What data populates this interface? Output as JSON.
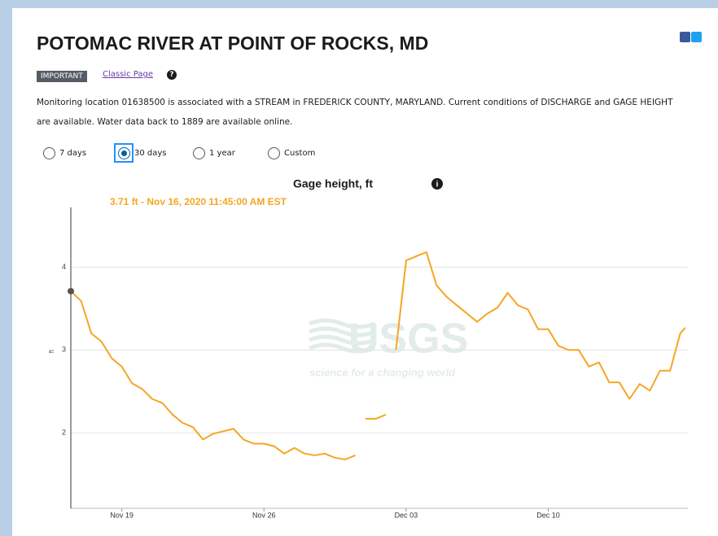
{
  "header": {
    "title": "POTOMAC RIVER AT POINT OF ROCKS, MD",
    "badge": "IMPORTANT",
    "link": "Classic Page"
  },
  "description": "Monitoring location 01638500 is associated with a STREAM in FREDERICK COUNTY, MARYLAND. Current conditions of DISCHARGE and GAGE HEIGHT are available. Water data back to 1889 are available online.",
  "period_options": {
    "options": [
      "7 days",
      "30 days",
      "1 year",
      "Custom"
    ],
    "selected": "30 days"
  },
  "chart_data": {
    "type": "line",
    "title": "Gage height, ft",
    "ylabel": "ft",
    "tooltip": "3.71 ft - Nov 16, 2020 11:45:00 AM EST",
    "watermark": [
      "USGS",
      "science for a changing world"
    ],
    "color": "#f5a623",
    "x": [
      "2020-11-16T11:45",
      "2020-11-17T00:00",
      "2020-11-17T12:00",
      "2020-11-18T00:00",
      "2020-11-18T12:00",
      "2020-11-19T00:00",
      "2020-11-19T12:00",
      "2020-11-20T00:00",
      "2020-11-20T12:00",
      "2020-11-21T00:00",
      "2020-11-21T12:00",
      "2020-11-22T00:00",
      "2020-11-22T12:00",
      "2020-11-23T00:00",
      "2020-11-23T12:00",
      "2020-11-24T00:00",
      "2020-11-24T12:00",
      "2020-11-25T00:00",
      "2020-11-25T12:00",
      "2020-11-26T00:00",
      "2020-11-26T12:00",
      "2020-11-27T00:00",
      "2020-11-27T12:00",
      "2020-11-28T00:00",
      "2020-11-28T12:00",
      "2020-11-29T00:00",
      "2020-11-29T12:00",
      "2020-11-30T00:00",
      "2020-11-30T12:00",
      "2020-11-30T18:00",
      "2020-12-01T00:00",
      "2020-12-01T12:00",
      "2020-12-02T00:00",
      "2020-12-02T06:00",
      "2020-12-02T12:00",
      "2020-12-03T00:00",
      "2020-12-03T12:00",
      "2020-12-04T00:00",
      "2020-12-04T12:00",
      "2020-12-05T00:00",
      "2020-12-05T12:00",
      "2020-12-06T00:00",
      "2020-12-06T12:00",
      "2020-12-07T00:00",
      "2020-12-07T12:00",
      "2020-12-08T00:00",
      "2020-12-08T12:00",
      "2020-12-09T00:00",
      "2020-12-09T12:00",
      "2020-12-10T00:00",
      "2020-12-10T12:00",
      "2020-12-11T00:00",
      "2020-12-11T12:00",
      "2020-12-12T00:00",
      "2020-12-12T12:00",
      "2020-12-13T00:00",
      "2020-12-13T12:00",
      "2020-12-14T00:00",
      "2020-12-14T12:00",
      "2020-12-15T00:00",
      "2020-12-15T12:00",
      "2020-12-16T00:00",
      "2020-12-16T12:00",
      "2020-12-16T18:00"
    ],
    "values": [
      3.71,
      3.59,
      3.2,
      3.1,
      2.9,
      2.8,
      2.6,
      2.53,
      2.41,
      2.36,
      2.22,
      2.12,
      2.07,
      1.92,
      1.99,
      2.02,
      2.05,
      1.92,
      1.87,
      1.87,
      1.84,
      1.75,
      1.82,
      1.75,
      1.73,
      1.75,
      1.7,
      1.68,
      1.73,
      null,
      2.17,
      2.17,
      2.22,
      null,
      3.0,
      4.08,
      4.13,
      4.18,
      3.78,
      3.64,
      3.54,
      3.44,
      3.34,
      3.44,
      3.51,
      3.69,
      3.54,
      3.49,
      3.25,
      3.25,
      3.05,
      3.0,
      3.0,
      2.8,
      2.85,
      2.61,
      2.61,
      2.41,
      2.59,
      2.51,
      2.75,
      2.75,
      3.2,
      3.27
    ],
    "xlim": [
      "2020-11-16T11:45",
      "2020-12-16T21:00"
    ],
    "xticks": [
      {
        "value": "2020-11-19T00:00",
        "label": "Nov 19"
      },
      {
        "value": "2020-11-26T00:00",
        "label": "Nov 26"
      },
      {
        "value": "2020-12-03T00:00",
        "label": "Dec 03"
      },
      {
        "value": "2020-12-10T00:00",
        "label": "Dec 10"
      }
    ],
    "ylim": [
      1.09,
      4.72
    ],
    "yticks": [
      2,
      3,
      4
    ],
    "grid": true
  }
}
